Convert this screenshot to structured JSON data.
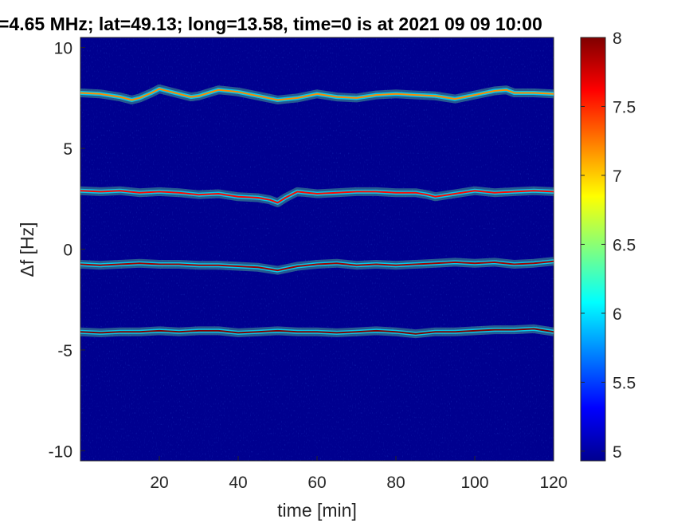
{
  "chart_data": {
    "type": "heatmap",
    "title": "=4.65 MHz;  lat=49.13; long=13.58, time=0 is at 2021 09 09 10:00",
    "xlabel": "time [min]",
    "ylabel": "Δf [Hz]",
    "xlim": [
      0,
      120
    ],
    "ylim": [
      -10.5,
      10.5
    ],
    "x_ticks": [
      20,
      40,
      60,
      80,
      100,
      120
    ],
    "x_tick_labels": [
      "20",
      "40",
      "60",
      "80",
      "100",
      "120"
    ],
    "y_ticks": [
      10,
      5,
      0,
      -5,
      -10
    ],
    "y_tick_labels": [
      "10",
      "5",
      "0",
      "-5",
      "-10"
    ],
    "colorbar": {
      "colormap": "jet",
      "clim": [
        4.93,
        8
      ],
      "ticks": [
        5,
        5.5,
        6,
        6.5,
        7,
        7.5,
        8
      ],
      "tick_labels": [
        "5",
        "5.5",
        "6",
        "6.5",
        "7",
        "7.5",
        "8"
      ]
    },
    "background_value": 5.0,
    "series": [
      {
        "time": [
          0,
          5,
          10,
          13,
          15,
          18,
          20,
          25,
          28,
          30,
          35,
          40,
          45,
          50,
          55,
          60,
          65,
          70,
          75,
          80,
          85,
          90,
          95,
          100,
          105,
          108,
          110,
          115,
          120
        ],
        "delta_f": [
          7.75,
          7.7,
          7.55,
          7.4,
          7.5,
          7.75,
          7.95,
          7.7,
          7.55,
          7.6,
          7.9,
          7.8,
          7.6,
          7.4,
          7.5,
          7.7,
          7.55,
          7.5,
          7.65,
          7.7,
          7.65,
          7.6,
          7.45,
          7.65,
          7.85,
          7.9,
          7.75,
          7.75,
          7.7
        ],
        "peak_intensity": 7.2
      },
      {
        "time": [
          0,
          5,
          10,
          15,
          20,
          25,
          30,
          35,
          40,
          45,
          48,
          50,
          52,
          55,
          60,
          65,
          70,
          75,
          80,
          85,
          88,
          90,
          95,
          100,
          105,
          110,
          115,
          120
        ],
        "delta_f": [
          2.9,
          2.85,
          2.9,
          2.8,
          2.85,
          2.8,
          2.7,
          2.75,
          2.6,
          2.55,
          2.45,
          2.3,
          2.55,
          2.85,
          2.75,
          2.8,
          2.85,
          2.85,
          2.8,
          2.8,
          2.7,
          2.6,
          2.75,
          2.9,
          2.8,
          2.85,
          2.9,
          2.85
        ],
        "peak_intensity": 7.6
      },
      {
        "time": [
          0,
          5,
          10,
          15,
          20,
          25,
          30,
          35,
          40,
          45,
          50,
          55,
          60,
          65,
          70,
          75,
          80,
          85,
          90,
          95,
          100,
          105,
          110,
          115,
          120
        ],
        "delta_f": [
          -0.75,
          -0.8,
          -0.75,
          -0.7,
          -0.75,
          -0.75,
          -0.8,
          -0.8,
          -0.85,
          -0.9,
          -1.05,
          -0.85,
          -0.75,
          -0.7,
          -0.8,
          -0.75,
          -0.8,
          -0.75,
          -0.7,
          -0.65,
          -0.7,
          -0.65,
          -0.75,
          -0.7,
          -0.6
        ],
        "peak_intensity": 7.9
      },
      {
        "time": [
          0,
          5,
          10,
          15,
          20,
          25,
          30,
          35,
          40,
          45,
          50,
          55,
          60,
          65,
          70,
          75,
          80,
          85,
          90,
          95,
          100,
          105,
          110,
          115,
          120
        ],
        "delta_f": [
          -4.1,
          -4.15,
          -4.1,
          -4.1,
          -4.05,
          -4.1,
          -4.05,
          -4.05,
          -4.15,
          -4.1,
          -4.05,
          -4.1,
          -4.1,
          -4.15,
          -4.1,
          -4.05,
          -4.1,
          -4.2,
          -4.1,
          -4.1,
          -4.05,
          -4.0,
          -4.0,
          -3.95,
          -4.1
        ],
        "peak_intensity": 8.0
      }
    ]
  }
}
